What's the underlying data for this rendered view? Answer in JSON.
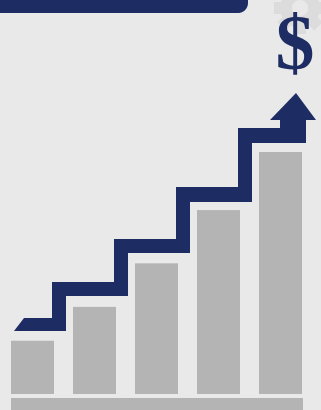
{
  "symbol": "$",
  "colors": {
    "background": "#e9e9e9",
    "bars": "#b4b4b4",
    "baseline": "#b4b4b4",
    "arrow": "#1d2d63",
    "banner": "#1d2d63",
    "gear": "#dcdcdc"
  },
  "icons": {
    "symbol": "dollar-sign-icon",
    "arrow": "rising-staircase-arrow-icon",
    "decor": "gear-icon"
  },
  "bars": {
    "count": 5,
    "relative_heights": [
      0.22,
      0.36,
      0.54,
      0.76,
      1.0
    ]
  }
}
